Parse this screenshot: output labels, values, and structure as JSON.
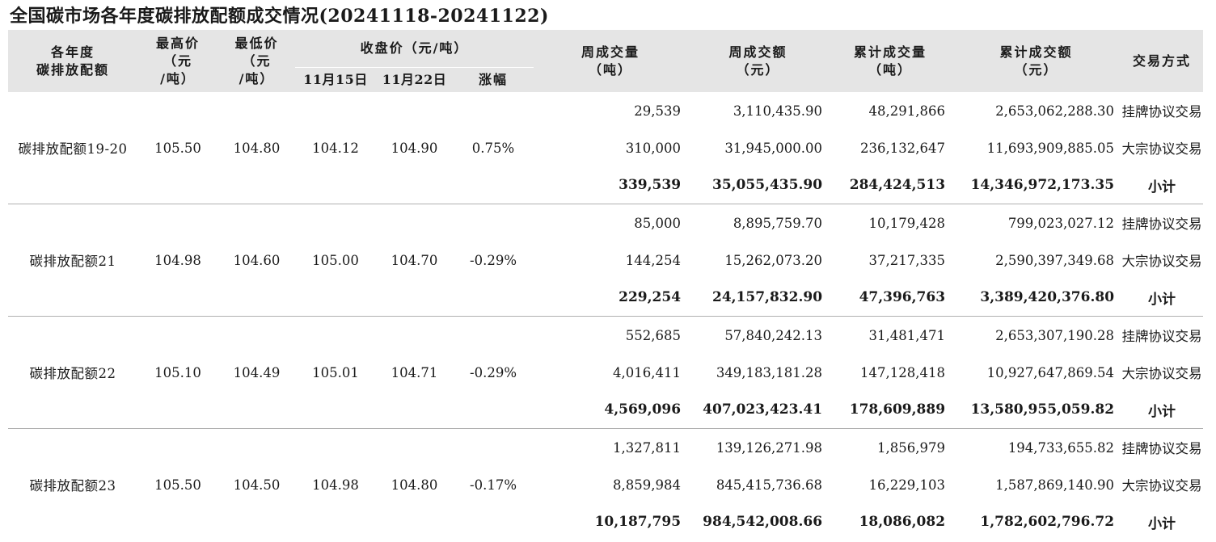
{
  "title": "全国碳市场各年度碳排放配额成交情况(20241118-20241122)",
  "headers": {
    "allowance": [
      "各年度",
      "碳排放配额"
    ],
    "high": [
      "最高价",
      "（元",
      "/吨）"
    ],
    "low": [
      "最低价",
      "（元",
      "/吨）"
    ],
    "close": "收盘价（元/吨）",
    "close_prev": "11月15日",
    "close_curr": "11月22日",
    "change": "涨幅",
    "weekly_volume": [
      "周成交量",
      "（吨）"
    ],
    "weekly_amount": [
      "周成交额",
      "（元）"
    ],
    "cum_volume": [
      "累计成交量",
      "（吨）"
    ],
    "cum_amount": [
      "累计成交额",
      "（元）"
    ],
    "method": "交易方式"
  },
  "groups": [
    {
      "name": "碳排放配额19-20",
      "high": "105.50",
      "low": "104.80",
      "close_prev": "104.12",
      "close_curr": "104.90",
      "change": "0.75%",
      "rows": [
        {
          "weekly_volume": "29,539",
          "weekly_amount": "3,110,435.90",
          "cum_volume": "48,291,866",
          "cum_amount": "2,653,062,288.30",
          "method": "挂牌协议交易"
        },
        {
          "weekly_volume": "310,000",
          "weekly_amount": "31,945,000.00",
          "cum_volume": "236,132,647",
          "cum_amount": "11,693,909,885.05",
          "method": "大宗协议交易"
        },
        {
          "weekly_volume": "339,539",
          "weekly_amount": "35,055,435.90",
          "cum_volume": "284,424,513",
          "cum_amount": "14,346,972,173.35",
          "method": "小计"
        }
      ]
    },
    {
      "name": "碳排放配额21",
      "high": "104.98",
      "low": "104.60",
      "close_prev": "105.00",
      "close_curr": "104.70",
      "change": "-0.29%",
      "rows": [
        {
          "weekly_volume": "85,000",
          "weekly_amount": "8,895,759.70",
          "cum_volume": "10,179,428",
          "cum_amount": "799,023,027.12",
          "method": "挂牌协议交易"
        },
        {
          "weekly_volume": "144,254",
          "weekly_amount": "15,262,073.20",
          "cum_volume": "37,217,335",
          "cum_amount": "2,590,397,349.68",
          "method": "大宗协议交易"
        },
        {
          "weekly_volume": "229,254",
          "weekly_amount": "24,157,832.90",
          "cum_volume": "47,396,763",
          "cum_amount": "3,389,420,376.80",
          "method": "小计"
        }
      ]
    },
    {
      "name": "碳排放配额22",
      "high": "105.10",
      "low": "104.49",
      "close_prev": "105.01",
      "close_curr": "104.71",
      "change": "-0.29%",
      "rows": [
        {
          "weekly_volume": "552,685",
          "weekly_amount": "57,840,242.13",
          "cum_volume": "31,481,471",
          "cum_amount": "2,653,307,190.28",
          "method": "挂牌协议交易"
        },
        {
          "weekly_volume": "4,016,411",
          "weekly_amount": "349,183,181.28",
          "cum_volume": "147,128,418",
          "cum_amount": "10,927,647,869.54",
          "method": "大宗协议交易"
        },
        {
          "weekly_volume": "4,569,096",
          "weekly_amount": "407,023,423.41",
          "cum_volume": "178,609,889",
          "cum_amount": "13,580,955,059.82",
          "method": "小计"
        }
      ]
    },
    {
      "name": "碳排放配额23",
      "high": "105.50",
      "low": "104.50",
      "close_prev": "104.98",
      "close_curr": "104.80",
      "change": "-0.17%",
      "rows": [
        {
          "weekly_volume": "1,327,811",
          "weekly_amount": "139,126,271.98",
          "cum_volume": "1,856,979",
          "cum_amount": "194,733,655.82",
          "method": "挂牌协议交易"
        },
        {
          "weekly_volume": "8,859,984",
          "weekly_amount": "845,415,736.68",
          "cum_volume": "16,229,103",
          "cum_amount": "1,587,869,140.90",
          "method": "大宗协议交易"
        },
        {
          "weekly_volume": "10,187,795",
          "weekly_amount": "984,542,008.66",
          "cum_volume": "18,086,082",
          "cum_amount": "1,782,602,796.72",
          "method": "小计"
        }
      ]
    }
  ]
}
